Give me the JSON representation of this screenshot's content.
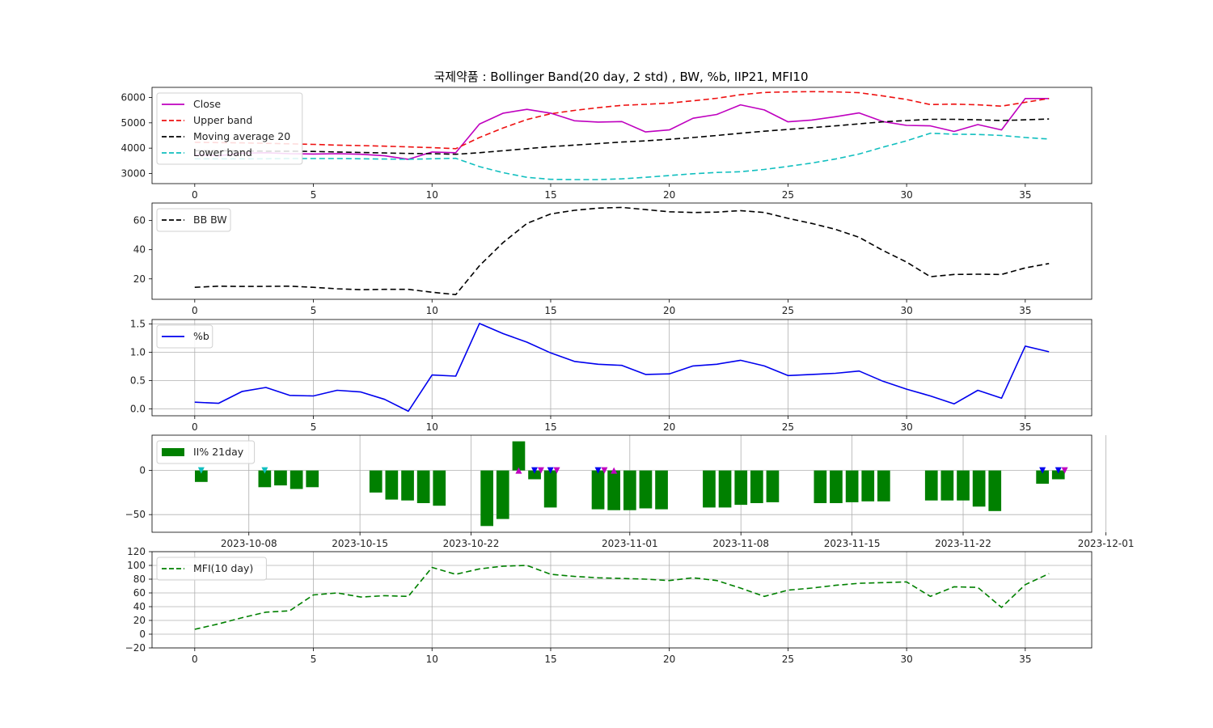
{
  "title": "국제약품 : Bollinger Band(20 day, 2 std) , BW, %b, IIP21, MFI10",
  "chart_data": [
    {
      "type": "line",
      "id": "bollinger",
      "x": [
        0,
        1,
        2,
        3,
        4,
        5,
        6,
        7,
        8,
        9,
        10,
        11,
        12,
        13,
        14,
        15,
        16,
        17,
        18,
        19,
        20,
        21,
        22,
        23,
        24,
        25,
        26,
        27,
        28,
        29,
        30,
        31,
        32,
        33,
        34,
        35,
        36
      ],
      "series": [
        {
          "name": "Close",
          "color": "#bf00bf",
          "dash": "solid",
          "values": [
            3750,
            3700,
            3800,
            3820,
            3780,
            3770,
            3780,
            3760,
            3700,
            3560,
            3850,
            3820,
            4950,
            5380,
            5530,
            5380,
            5080,
            5030,
            5050,
            4640,
            4720,
            5180,
            5330,
            5710,
            5510,
            5040,
            5110,
            5240,
            5390,
            5050,
            4900,
            4880,
            4660,
            4930,
            4720,
            5960,
            5960
          ]
        },
        {
          "name": "Upper band",
          "color": "#ee1111",
          "dash": "dashed",
          "values": [
            4230,
            4220,
            4210,
            4190,
            4170,
            4150,
            4120,
            4100,
            4080,
            4050,
            4020,
            3980,
            4420,
            4800,
            5130,
            5360,
            5490,
            5600,
            5690,
            5730,
            5780,
            5870,
            5970,
            6110,
            6200,
            6220,
            6230,
            6220,
            6190,
            6060,
            5920,
            5720,
            5740,
            5710,
            5660,
            5810,
            5960
          ]
        },
        {
          "name": "Moving average 20",
          "color": "#000000",
          "dash": "dashed",
          "values": [
            3900,
            3900,
            3890,
            3880,
            3880,
            3870,
            3850,
            3830,
            3810,
            3790,
            3780,
            3760,
            3820,
            3900,
            3980,
            4060,
            4120,
            4180,
            4240,
            4290,
            4350,
            4420,
            4500,
            4590,
            4670,
            4740,
            4810,
            4880,
            4960,
            5040,
            5090,
            5140,
            5140,
            5120,
            5090,
            5120,
            5150
          ]
        },
        {
          "name": "Lower band",
          "color": "#11bfbf",
          "dash": "dashed",
          "values": [
            3580,
            3580,
            3580,
            3580,
            3590,
            3590,
            3590,
            3580,
            3570,
            3560,
            3580,
            3600,
            3270,
            3030,
            2850,
            2770,
            2760,
            2760,
            2790,
            2850,
            2920,
            2990,
            3040,
            3070,
            3160,
            3280,
            3410,
            3570,
            3770,
            4040,
            4290,
            4590,
            4550,
            4540,
            4500,
            4420,
            4360
          ]
        }
      ],
      "ylim": [
        2600,
        6400
      ],
      "yticks": [
        3000,
        4000,
        5000,
        6000
      ],
      "xticks": [
        0,
        5,
        10,
        15,
        20,
        25,
        30,
        35
      ],
      "xlim": [
        -1.8,
        37.8
      ],
      "grid": false,
      "legend": "upper-left"
    },
    {
      "type": "line",
      "id": "bandwidth",
      "x": [
        0,
        1,
        2,
        3,
        4,
        5,
        6,
        7,
        8,
        9,
        10,
        11,
        12,
        13,
        14,
        15,
        16,
        17,
        18,
        19,
        20,
        21,
        22,
        23,
        24,
        25,
        26,
        27,
        28,
        29,
        30,
        31,
        32,
        33,
        34,
        35,
        36
      ],
      "series": [
        {
          "name": "BB BW",
          "color": "#000000",
          "dash": "dashed",
          "values": [
            14.2,
            15.0,
            14.8,
            14.9,
            15.0,
            14.2,
            13.2,
            12.6,
            12.8,
            12.8,
            10.8,
            9.2,
            29.0,
            45.0,
            58.0,
            64.5,
            67.0,
            68.5,
            69.0,
            67.5,
            66.0,
            65.5,
            65.8,
            66.8,
            65.5,
            61.5,
            58.0,
            54.0,
            48.5,
            39.5,
            31.5,
            21.5,
            23.0,
            23.2,
            23.0,
            27.5,
            30.5
          ]
        }
      ],
      "ylim": [
        6,
        72
      ],
      "yticks": [
        20,
        40,
        60
      ],
      "xticks": [
        0,
        5,
        10,
        15,
        20,
        25,
        30,
        35
      ],
      "xlim": [
        -1.8,
        37.8
      ],
      "grid": false,
      "legend": "upper-left"
    },
    {
      "type": "line",
      "id": "percent_b",
      "x": [
        0,
        1,
        2,
        3,
        4,
        5,
        6,
        7,
        8,
        9,
        10,
        11,
        12,
        13,
        14,
        15,
        16,
        17,
        18,
        19,
        20,
        21,
        22,
        23,
        24,
        25,
        26,
        27,
        28,
        29,
        30,
        31,
        32,
        33,
        34,
        35,
        36
      ],
      "series": [
        {
          "name": "%b",
          "color": "#0000ee",
          "dash": "solid",
          "values": [
            0.12,
            0.1,
            0.31,
            0.38,
            0.24,
            0.23,
            0.33,
            0.3,
            0.17,
            -0.04,
            0.6,
            0.58,
            1.51,
            1.33,
            1.18,
            0.99,
            0.84,
            0.79,
            0.77,
            0.61,
            0.62,
            0.76,
            0.79,
            0.86,
            0.76,
            0.59,
            0.61,
            0.63,
            0.67,
            0.49,
            0.35,
            0.23,
            0.09,
            0.33,
            0.19,
            1.11,
            1.01
          ]
        }
      ],
      "ylim": [
        -0.12,
        1.58
      ],
      "yticks": [
        0.0,
        0.5,
        1.0,
        1.5
      ],
      "ytick_labels": [
        "0.0",
        "0.5",
        "1.0",
        "1.5"
      ],
      "xticks": [
        0,
        5,
        10,
        15,
        20,
        25,
        30,
        35
      ],
      "xlim": [
        -1.8,
        37.8
      ],
      "grid": true,
      "legend": "upper-left"
    },
    {
      "type": "bar",
      "id": "iip21",
      "series_name": "II% 21day",
      "color": "#008000",
      "date_start": "2023-10-04",
      "bars": [
        {
          "date": "2023-10-05",
          "value": -13
        },
        {
          "date": "2023-10-09",
          "value": -19
        },
        {
          "date": "2023-10-10",
          "value": -17
        },
        {
          "date": "2023-10-11",
          "value": -21
        },
        {
          "date": "2023-10-12",
          "value": -19
        },
        {
          "date": "2023-10-16",
          "value": -25
        },
        {
          "date": "2023-10-17",
          "value": -33
        },
        {
          "date": "2023-10-18",
          "value": -34
        },
        {
          "date": "2023-10-19",
          "value": -37
        },
        {
          "date": "2023-10-20",
          "value": -40
        },
        {
          "date": "2023-10-23",
          "value": -63
        },
        {
          "date": "2023-10-24",
          "value": -55
        },
        {
          "date": "2023-10-25",
          "value": 33
        },
        {
          "date": "2023-10-26",
          "value": -10
        },
        {
          "date": "2023-10-27",
          "value": -42
        },
        {
          "date": "2023-10-30",
          "value": -44
        },
        {
          "date": "2023-10-31",
          "value": -45
        },
        {
          "date": "2023-11-01",
          "value": -45
        },
        {
          "date": "2023-11-02",
          "value": -43
        },
        {
          "date": "2023-11-03",
          "value": -44
        },
        {
          "date": "2023-11-06",
          "value": -42
        },
        {
          "date": "2023-11-07",
          "value": -42
        },
        {
          "date": "2023-11-08",
          "value": -39
        },
        {
          "date": "2023-11-09",
          "value": -37
        },
        {
          "date": "2023-11-10",
          "value": -36
        },
        {
          "date": "2023-11-13",
          "value": -37
        },
        {
          "date": "2023-11-14",
          "value": -37
        },
        {
          "date": "2023-11-15",
          "value": -36
        },
        {
          "date": "2023-11-16",
          "value": -35
        },
        {
          "date": "2023-11-17",
          "value": -35
        },
        {
          "date": "2023-11-20",
          "value": -34
        },
        {
          "date": "2023-11-21",
          "value": -34
        },
        {
          "date": "2023-11-22",
          "value": -34
        },
        {
          "date": "2023-11-23",
          "value": -41
        },
        {
          "date": "2023-11-24",
          "value": -46
        },
        {
          "date": "2023-11-27",
          "value": -15
        },
        {
          "date": "2023-11-28",
          "value": -10
        }
      ],
      "markers": [
        {
          "date": "2023-10-05",
          "shape": "down",
          "color": "#11bfbf"
        },
        {
          "date": "2023-10-09",
          "shape": "down",
          "color": "#11bfbf"
        },
        {
          "date": "2023-10-25",
          "shape": "up",
          "color": "#bf00bf"
        },
        {
          "date": "2023-10-26",
          "shape": "down",
          "color": "#0000ee"
        },
        {
          "date": "2023-10-26",
          "shape": "down",
          "color": "#bf00bf",
          "offset": 0.4
        },
        {
          "date": "2023-10-27",
          "shape": "down",
          "color": "#0000ee"
        },
        {
          "date": "2023-10-27",
          "shape": "down",
          "color": "#bf00bf",
          "offset": 0.4
        },
        {
          "date": "2023-10-30",
          "shape": "down",
          "color": "#0000ee"
        },
        {
          "date": "2023-10-30",
          "shape": "down",
          "color": "#bf00bf",
          "offset": 0.4
        },
        {
          "date": "2023-10-31",
          "shape": "up",
          "color": "#bf00bf"
        },
        {
          "date": "2023-11-27",
          "shape": "down",
          "color": "#0000ee"
        },
        {
          "date": "2023-11-28",
          "shape": "down",
          "color": "#0000ee"
        },
        {
          "date": "2023-11-28",
          "shape": "down",
          "color": "#bf00bf",
          "offset": 0.4
        }
      ],
      "ylim": [
        -70,
        40
      ],
      "yticks": [
        0,
        -50
      ],
      "ytick_labels": [
        "0",
        "−50"
      ],
      "xticks": [
        "2023-10-08",
        "2023-10-15",
        "2023-10-22",
        "2023-11-01",
        "2023-11-08",
        "2023-11-15",
        "2023-11-22",
        "2023-12-01"
      ],
      "xlim_days": [
        -2.1,
        57.1
      ],
      "grid": true,
      "legend": "upper-left"
    },
    {
      "type": "line",
      "id": "mfi10",
      "x": [
        0,
        1,
        2,
        3,
        4,
        5,
        6,
        7,
        8,
        9,
        10,
        11,
        12,
        13,
        14,
        15,
        16,
        17,
        18,
        19,
        20,
        21,
        22,
        23,
        24,
        25,
        26,
        27,
        28,
        29,
        30,
        31,
        32,
        33,
        34,
        35,
        36
      ],
      "series": [
        {
          "name": "MFI(10 day)",
          "color": "#008000",
          "dash": "dashed",
          "values": [
            7,
            15,
            24,
            32,
            34,
            57,
            60,
            54,
            56,
            55,
            97,
            87,
            95,
            99,
            100,
            87,
            84,
            82,
            81,
            80,
            78,
            82,
            78,
            67,
            55,
            64,
            67,
            71,
            74,
            75,
            76,
            55,
            69,
            68,
            39,
            72,
            88
          ]
        }
      ],
      "ylim": [
        -20,
        120
      ],
      "yticks": [
        -20,
        0,
        20,
        40,
        60,
        80,
        100,
        120
      ],
      "ytick_labels": [
        "−20",
        "0",
        "20",
        "40",
        "60",
        "80",
        "100",
        "120"
      ],
      "xticks": [
        0,
        5,
        10,
        15,
        20,
        25,
        30,
        35
      ],
      "xlim": [
        -1.8,
        37.8
      ],
      "grid": true,
      "legend": "upper-left"
    }
  ]
}
